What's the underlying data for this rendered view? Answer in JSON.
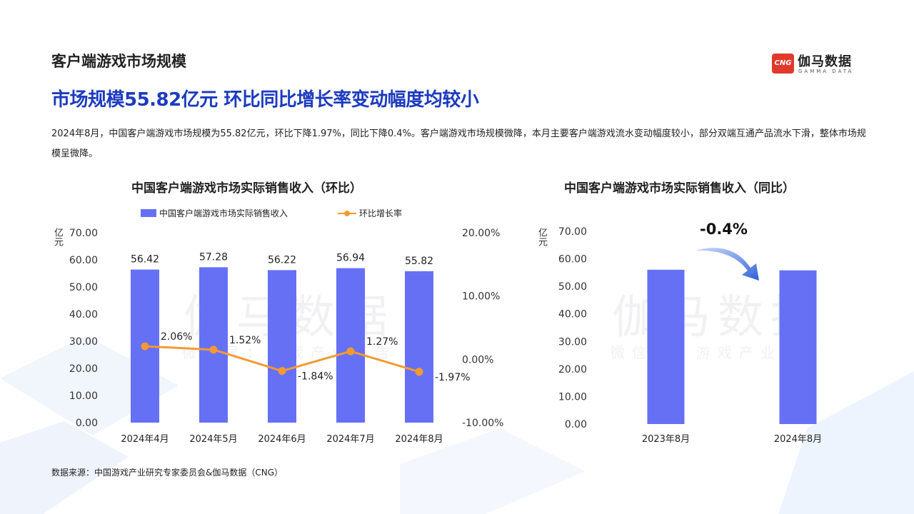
{
  "page": {
    "section_title": "客户端游戏市场规模",
    "headline": "市场规模55.82亿元 环比同比增长率变动幅度均较小",
    "description": "2024年8月，中国客户端游戏市场规模为55.82亿元，环比下降1.97%，同比下降0.4%。客户端游戏市场规模微降，本月主要客户端游戏流水变动幅度较小，部分双端互通产品流水下滑，整体市场规模呈微降。",
    "source": "数据来源：中国游戏产业研究专家委员会&伽马数据（CNG）"
  },
  "logo": {
    "badge": "CNG",
    "name": "伽马数据",
    "sub": "GAMMA DATA"
  },
  "watermark": {
    "main": "伽马数据",
    "sub": "微信号：游戏产业报告"
  },
  "colors": {
    "bar": "#6670f5",
    "line": "#f39a33",
    "headline": "#1c3bbf"
  },
  "chart_data": [
    {
      "type": "bar",
      "title": "中国客户端游戏市场实际销售收入（环比）",
      "categories": [
        "2024年4月",
        "2024年5月",
        "2024年6月",
        "2024年7月",
        "2024年8月"
      ],
      "ylabel": "亿元",
      "ylim": [
        0,
        70
      ],
      "yticks": [
        0,
        10,
        20,
        30,
        40,
        50,
        60,
        70
      ],
      "y_tick_labels": [
        "0.00",
        "10.00",
        "20.00",
        "30.00",
        "40.00",
        "50.00",
        "60.00",
        "70.00"
      ],
      "y2lim": [
        -10,
        20
      ],
      "y2ticks": [
        -10,
        0,
        10,
        20
      ],
      "y2_tick_labels": [
        "-10.00%",
        "0.00%",
        "10.00%",
        "20.00%"
      ],
      "legend_position": "top",
      "series": [
        {
          "name": "中国客户端游戏市场实际销售收入",
          "type": "bar",
          "values": [
            56.42,
            57.28,
            56.22,
            56.94,
            55.82
          ],
          "labels": [
            "56.42",
            "57.28",
            "56.22",
            "56.94",
            "55.82"
          ]
        },
        {
          "name": "环比增长率",
          "type": "line",
          "axis": "right",
          "values": [
            2.06,
            1.52,
            -1.84,
            1.27,
            -1.97
          ],
          "labels": [
            "2.06%",
            "1.52%",
            "-1.84%",
            "1.27%",
            "-1.97%"
          ]
        }
      ]
    },
    {
      "type": "bar",
      "title": "中国客户端游戏市场实际销售收入（同比）",
      "categories": [
        "2023年8月",
        "2024年8月"
      ],
      "ylabel": "亿元",
      "ylim": [
        0,
        70
      ],
      "yticks": [
        0,
        10,
        20,
        30,
        40,
        50,
        60,
        70
      ],
      "y_tick_labels": [
        "0.00",
        "10.00",
        "20.00",
        "30.00",
        "40.00",
        "50.00",
        "60.00",
        "70.00"
      ],
      "values": [
        56.04,
        55.82
      ],
      "annotation": "-0.4%"
    }
  ]
}
